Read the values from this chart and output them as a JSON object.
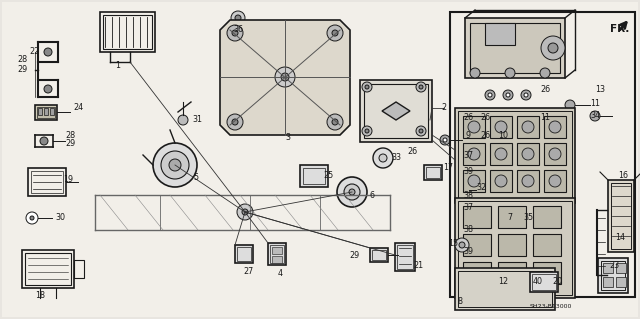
{
  "bg_color": "#f0ede8",
  "fig_width": 6.4,
  "fig_height": 3.19,
  "dpi": 100,
  "diagram_code": "SH23-B13000",
  "line_color": "#1a1a1a",
  "line_width": 0.7,
  "font_size": 5.8
}
